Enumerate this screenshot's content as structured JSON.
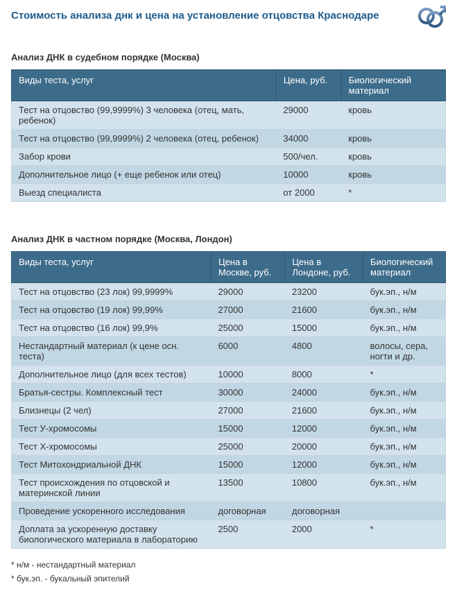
{
  "colors": {
    "title": "#1f5b8a",
    "header_bg": "#3d6b8a",
    "header_text": "#ffffff",
    "row_odd": "#d2e3ed",
    "row_even": "#c1d7e4",
    "border": "#c4d2d9",
    "section_text": "#333333"
  },
  "page_title": "Стоимость анализа днк и цена на установление отцовства Краснодаре",
  "section1": {
    "title": "Анализ ДНК в судебном порядке (Москва)",
    "columns": [
      "Виды теста, услуг",
      "Цена, руб.",
      "Биологический материал"
    ],
    "col_widths": [
      "61%",
      "15%",
      "24%"
    ],
    "rows": [
      [
        "Тест на отцовство (99,9999%) 3 человека (отец, мать, ребенок)",
        "29000",
        "кровь"
      ],
      [
        "Тест на отцовство (99,9999%) 2 человека (отец, ребенок)",
        "34000",
        "кровь"
      ],
      [
        "Забор крови",
        "500/чел.",
        "кровь"
      ],
      [
        "Дополнительное лицо (+ еще ребенок или отец)",
        "10000",
        "кровь"
      ],
      [
        "Выезд специалиста",
        "от 2000",
        "*"
      ]
    ]
  },
  "section2": {
    "title": "Анализ ДНК в частном порядке (Москва, Лондон)",
    "columns": [
      "Виды теста, услуг",
      "Цена в Москве, руб.",
      "Цена в Лондоне, руб.",
      "Биологический материал"
    ],
    "col_widths": [
      "46%",
      "17%",
      "18%",
      "19%"
    ],
    "rows": [
      [
        "Тест на отцовство (23 лок) 99,9999%",
        "29000",
        "23200",
        "бук.эп., н/м"
      ],
      [
        "Тест на отцовство (19 лок) 99,99%",
        "27000",
        "21600",
        "бук.эп., н/м"
      ],
      [
        "Тест на отцовство (16 лок) 99,9%",
        "25000",
        "15000",
        "бук.эп., н/м"
      ],
      [
        "Нестандартный материал (к цене осн. теста)",
        "6000",
        "4800",
        "волосы, сера, ногти и др."
      ],
      [
        "Дополнительное лицо (для всех тестов)",
        "10000",
        "8000",
        "*"
      ],
      [
        "Братья-сестры. Комплексный тест",
        "30000",
        "24000",
        "бук.эп., н/м"
      ],
      [
        "Близнецы (2 чел)",
        "27000",
        "21600",
        "бук.эп., н/м"
      ],
      [
        "Тест У-хромосомы",
        "15000",
        "12000",
        "бук.эп., н/м"
      ],
      [
        "Тест Х-хромосомы",
        "25000",
        "20000",
        "бук.эп., н/м"
      ],
      [
        "Тест Митохондриальной ДНК",
        "15000",
        "12000",
        "бук.эп., н/м"
      ],
      [
        "Тест происхождения по отцовской и материнской линии",
        "13500",
        "10800",
        "бук.эп., н/м"
      ],
      [
        "Проведение ускоренного исследования",
        "договорная",
        "договорная",
        ""
      ],
      [
        "Доплата за ускоренную доставку биологического материала в лабораторию",
        "2500",
        "2000",
        "*"
      ]
    ]
  },
  "footnotes": [
    "* н/м - нестандартный материал",
    "* бук.эп. - букальный эпителий"
  ]
}
